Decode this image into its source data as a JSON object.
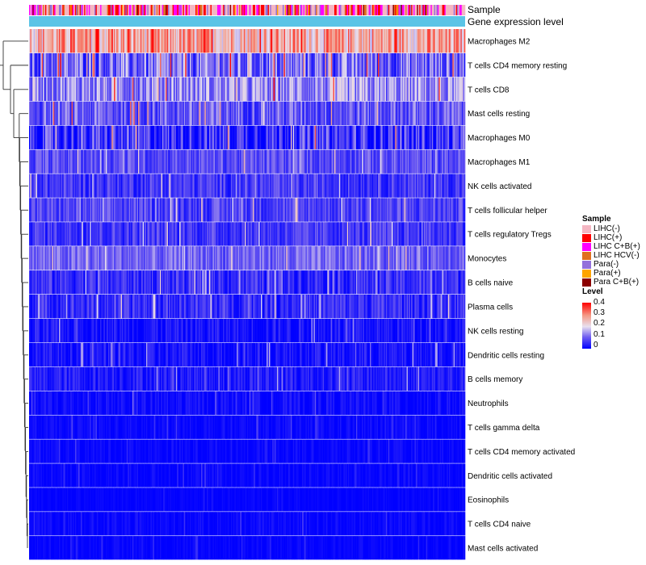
{
  "chart_data": {
    "type": "heatmap",
    "title": "",
    "annotation_tracks": [
      "Sample",
      "Gene expression level"
    ],
    "rows": [
      {
        "label": "Macrophages M2",
        "mean": 0.26,
        "spread": 0.1
      },
      {
        "label": "T cells CD4 memory resting",
        "mean": 0.1,
        "spread": 0.09
      },
      {
        "label": "T cells CD8",
        "mean": 0.13,
        "spread": 0.08
      },
      {
        "label": "Mast cells resting",
        "mean": 0.09,
        "spread": 0.07
      },
      {
        "label": "Macrophages M0",
        "mean": 0.05,
        "spread": 0.09
      },
      {
        "label": "Macrophages M1",
        "mean": 0.08,
        "spread": 0.05
      },
      {
        "label": "NK cells activated",
        "mean": 0.06,
        "spread": 0.05
      },
      {
        "label": "T cells follicular helper",
        "mean": 0.07,
        "spread": 0.05
      },
      {
        "label": "T cells regulatory  Tregs",
        "mean": 0.06,
        "spread": 0.05
      },
      {
        "label": "Monocytes",
        "mean": 0.1,
        "spread": 0.05
      },
      {
        "label": "B cells naive",
        "mean": 0.05,
        "spread": 0.05
      },
      {
        "label": "Plasma cells",
        "mean": 0.05,
        "spread": 0.05
      },
      {
        "label": "NK cells resting",
        "mean": 0.02,
        "spread": 0.04
      },
      {
        "label": "Dendritic cells resting",
        "mean": 0.02,
        "spread": 0.04
      },
      {
        "label": "B cells memory",
        "mean": 0.03,
        "spread": 0.04
      },
      {
        "label": "Neutrophils",
        "mean": 0.01,
        "spread": 0.03
      },
      {
        "label": "T cells gamma delta",
        "mean": 0.005,
        "spread": 0.02
      },
      {
        "label": "T cells CD4 memory activated",
        "mean": 0.005,
        "spread": 0.02
      },
      {
        "label": "Dendritic cells activated",
        "mean": 0.005,
        "spread": 0.02
      },
      {
        "label": "Eosinophils",
        "mean": 0.002,
        "spread": 0.01
      },
      {
        "label": "T cells CD4 naive",
        "mean": 0.005,
        "spread": 0.02
      },
      {
        "label": "Mast cells activated",
        "mean": 0.003,
        "spread": 0.015
      }
    ],
    "n_samples": 380,
    "sample_legend": {
      "title": "Sample",
      "entries": [
        {
          "label": "LIHC(-)",
          "color": "#f4b6c2"
        },
        {
          "label": "LIHC(+)",
          "color": "#ff0000"
        },
        {
          "label": "LIHC C+B(+)",
          "color": "#ff00ff"
        },
        {
          "label": "LIHC HCV(-)",
          "color": "#e07020"
        },
        {
          "label": "Para(-)",
          "color": "#9370db"
        },
        {
          "label": "Para(+)",
          "color": "#ffa500"
        },
        {
          "label": "Para C+B(+)",
          "color": "#8b0000"
        }
      ]
    },
    "level_legend": {
      "title": "Level",
      "ticks": [
        "0.4",
        "0.3",
        "0.2",
        "0.1",
        "0"
      ],
      "range": [
        0,
        0.4
      ]
    },
    "gene_expression_color": "#5bc4e6",
    "color_scale": [
      "#0000ff",
      "#ffffff",
      "#ff0000"
    ]
  }
}
